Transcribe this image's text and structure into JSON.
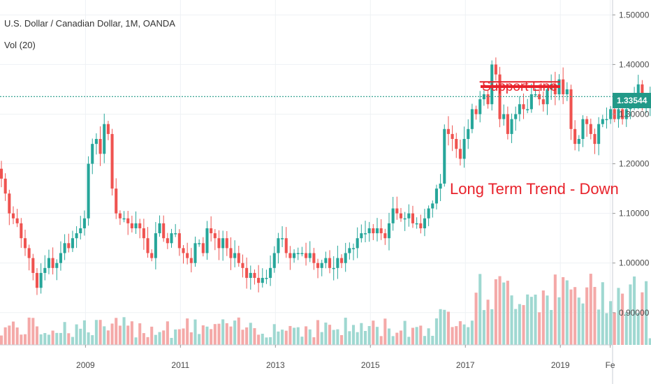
{
  "header": {
    "title": "U.S. Dollar / Canadian Dollar, 1M, OANDA",
    "volume_label": "Vol (20)"
  },
  "price_tag": "1.33544",
  "annotations": {
    "support_line": "Support Line",
    "trend": "Long Term Trend - Down"
  },
  "colors": {
    "up": "#26a69a",
    "down": "#ef5350",
    "up_volume": "#9fd8d1",
    "down_volume": "#f4a9a8",
    "price_line": "#229988",
    "annotation": "#e8222b"
  },
  "chart_data": {
    "type": "candlestick",
    "title": "U.S. Dollar / Canadian Dollar, 1M, OANDA",
    "y_tick_labels": [
      "1.50000",
      "1.40000",
      "1.30000",
      "1.20000",
      "1.10000",
      "1.00000",
      "0.90000"
    ],
    "y_ticks": [
      1.5,
      1.4,
      1.3,
      1.2,
      1.1,
      1.0,
      0.9
    ],
    "ylim": [
      0.835,
      1.53
    ],
    "x_tick_labels": [
      "2009",
      "2011",
      "2013",
      "2015",
      "2017",
      "2019",
      "Fe"
    ],
    "x_ticks": [
      2009,
      2011,
      2013,
      2015,
      2017,
      2019,
      2020.05
    ],
    "xlim": [
      2007.2,
      2020.1
    ],
    "current_price": 1.33544,
    "support_level": 1.365,
    "support_range": [
      2017.3,
      2019.0
    ],
    "monthly_close": [
      1.17,
      1.14,
      1.1,
      1.09,
      1.08,
      1.05,
      1.03,
      1.01,
      0.98,
      0.95,
      0.98,
      0.99,
      1.01,
      0.99,
      1.0,
      1.02,
      1.04,
      1.03,
      1.05,
      1.06,
      1.07,
      1.09,
      1.2,
      1.24,
      1.25,
      1.22,
      1.28,
      1.26,
      1.15,
      1.1,
      1.09,
      1.09,
      1.08,
      1.07,
      1.08,
      1.07,
      1.05,
      1.02,
      1.01,
      1.06,
      1.08,
      1.05,
      1.04,
      1.06,
      1.06,
      1.03,
      1.02,
      1.01,
      1.0,
      1.04,
      1.04,
      1.02,
      1.07,
      1.06,
      1.05,
      1.03,
      1.05,
      1.03,
      1.01,
      1.02,
      1.0,
      0.99,
      0.97,
      0.98,
      0.97,
      0.96,
      0.97,
      0.97,
      0.99,
      1.02,
      1.05,
      1.05,
      1.02,
      1.01,
      1.02,
      1.02,
      1.02,
      1.01,
      1.02,
      1.0,
      0.99,
      1.0,
      1.01,
      0.99,
      0.99,
      1.01,
      1.0,
      1.02,
      1.03,
      1.03,
      1.05,
      1.06,
      1.06,
      1.07,
      1.06,
      1.07,
      1.06,
      1.05,
      1.08,
      1.11,
      1.1,
      1.09,
      1.09,
      1.1,
      1.08,
      1.08,
      1.07,
      1.09,
      1.11,
      1.12,
      1.15,
      1.16,
      1.27,
      1.26,
      1.25,
      1.23,
      1.21,
      1.25,
      1.27,
      1.31,
      1.3,
      1.33,
      1.34,
      1.32,
      1.4,
      1.38,
      1.29,
      1.3,
      1.26,
      1.29,
      1.3,
      1.32,
      1.31,
      1.31,
      1.34,
      1.34,
      1.33,
      1.32,
      1.35,
      1.36,
      1.34,
      1.37,
      1.34,
      1.35,
      1.27,
      1.24,
      1.25,
      1.29,
      1.28,
      1.26,
      1.24,
      1.28,
      1.29,
      1.29,
      1.31,
      1.29,
      1.31,
      1.29,
      1.31,
      1.32,
      1.33,
      1.36,
      1.32,
      1.32,
      1.33,
      1.34
    ],
    "start": 2007.2,
    "step_years": 0.0833
  }
}
